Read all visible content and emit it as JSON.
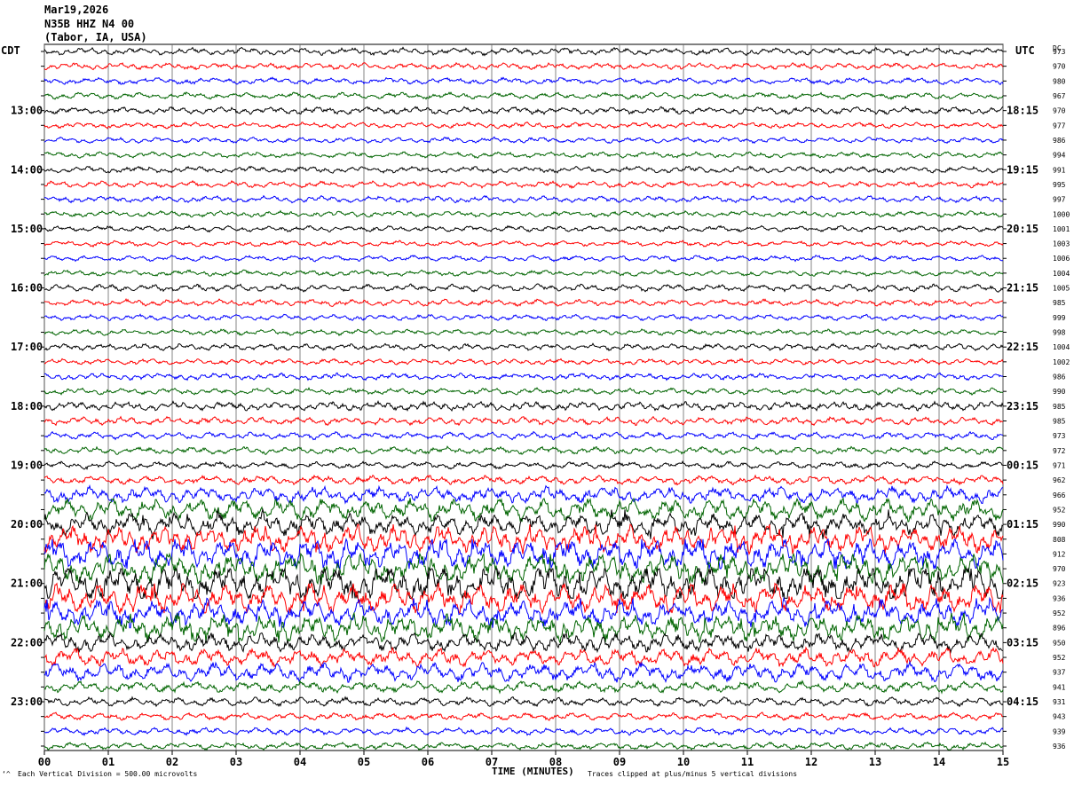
{
  "header": {
    "date": "Mar19,2026",
    "station": "N35B HHZ N4 00",
    "location": "(Tabor, IA, USA)"
  },
  "left_tz_label": "CDT",
  "right_tz_label": "UTC",
  "dc_label": "DC",
  "footer": {
    "scale_note": "Each Vertical Division =  500.00 microvolts",
    "clip_note": "Traces clipped at plus/minus 5 vertical divisions",
    "marker": "‘^"
  },
  "colors": {
    "black": "#000000",
    "red": "#ff0000",
    "blue": "#0000ff",
    "green": "#006400",
    "grid": "#000000"
  },
  "chart_data": {
    "type": "line",
    "title": "",
    "xlabel": "TIME (MINUTES)",
    "ylabel": "",
    "xlim": [
      0,
      15
    ],
    "x_ticks": [
      "00",
      "01",
      "02",
      "03",
      "04",
      "05",
      "06",
      "07",
      "08",
      "09",
      "10",
      "11",
      "12",
      "13",
      "14",
      "15"
    ],
    "trace_color_cycle": [
      "black",
      "red",
      "blue",
      "green"
    ],
    "left_time_labels": [
      {
        "trace": 4,
        "label": "13:00"
      },
      {
        "trace": 8,
        "label": "14:00"
      },
      {
        "trace": 12,
        "label": "15:00"
      },
      {
        "trace": 16,
        "label": "16:00"
      },
      {
        "trace": 20,
        "label": "17:00"
      },
      {
        "trace": 24,
        "label": "18:00"
      },
      {
        "trace": 28,
        "label": "19:00"
      },
      {
        "trace": 32,
        "label": "20:00"
      },
      {
        "trace": 36,
        "label": "21:00"
      },
      {
        "trace": 40,
        "label": "22:00"
      },
      {
        "trace": 44,
        "label": "23:00"
      }
    ],
    "right_time_labels": [
      {
        "trace": 4,
        "label": "18:15"
      },
      {
        "trace": 8,
        "label": "19:15"
      },
      {
        "trace": 12,
        "label": "20:15"
      },
      {
        "trace": 16,
        "label": "21:15"
      },
      {
        "trace": 20,
        "label": "22:15"
      },
      {
        "trace": 24,
        "label": "23:15"
      },
      {
        "trace": 28,
        "label": "00:15"
      },
      {
        "trace": 32,
        "label": "01:15"
      },
      {
        "trace": 36,
        "label": "02:15"
      },
      {
        "trace": 40,
        "label": "03:15"
      },
      {
        "trace": 44,
        "label": "04:15"
      }
    ],
    "dc_offsets": [
      "973",
      "970",
      "980",
      "967",
      "970",
      "977",
      "986",
      "994",
      "991",
      "995",
      "997",
      "1000",
      "1001",
      "1003",
      "1006",
      "1004",
      "1005",
      "985",
      "999",
      "998",
      "1004",
      "1002",
      "986",
      "990",
      "985",
      "985",
      "973",
      "972",
      "971",
      "962",
      "966",
      "952",
      "990",
      "808",
      "912",
      "970",
      "923",
      "936",
      "952",
      "896",
      "950",
      "952",
      "937",
      "941",
      "931",
      "943",
      "939",
      "936"
    ],
    "amplitude_divisions": [
      1.0,
      0.9,
      0.9,
      0.9,
      1.0,
      0.8,
      0.8,
      0.8,
      0.9,
      0.9,
      0.9,
      0.8,
      0.8,
      0.8,
      0.8,
      0.8,
      1.0,
      0.9,
      0.8,
      0.8,
      0.9,
      0.8,
      0.9,
      0.9,
      1.2,
      1.1,
      1.0,
      1.0,
      1.0,
      1.2,
      2.2,
      3.0,
      3.0,
      3.5,
      4.0,
      4.0,
      5.0,
      4.0,
      3.5,
      3.5,
      2.5,
      2.5,
      2.5,
      1.5,
      1.2,
      1.0,
      1.0,
      1.0
    ]
  }
}
